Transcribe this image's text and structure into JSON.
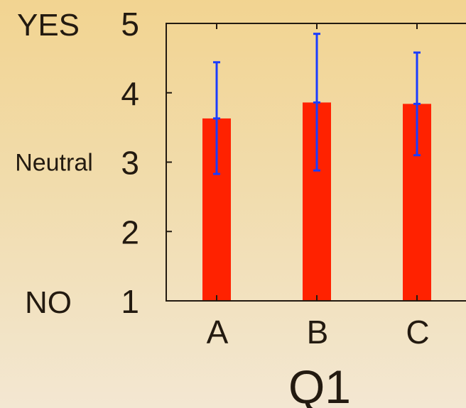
{
  "chart_data": {
    "type": "bar",
    "xlabel": "Q1",
    "categories": [
      "A",
      "B",
      "C"
    ],
    "values": [
      3.63,
      3.86,
      3.84
    ],
    "error_bars": [
      {
        "low": 2.83,
        "high": 4.44
      },
      {
        "low": 2.88,
        "high": 4.85
      },
      {
        "low": 3.1,
        "high": 4.58
      }
    ],
    "ylim": [
      1,
      5
    ],
    "yticks": [
      1,
      2,
      3,
      4,
      5
    ],
    "y_text_labels": [
      {
        "value": 5,
        "text": "YES"
      },
      {
        "value": 3,
        "text": "Neutral"
      },
      {
        "value": 1,
        "text": "NO"
      }
    ],
    "grid": false,
    "colors": {
      "bar": "#ff2200",
      "error_bar": "#1a3cff",
      "axis": "#231a10"
    }
  }
}
